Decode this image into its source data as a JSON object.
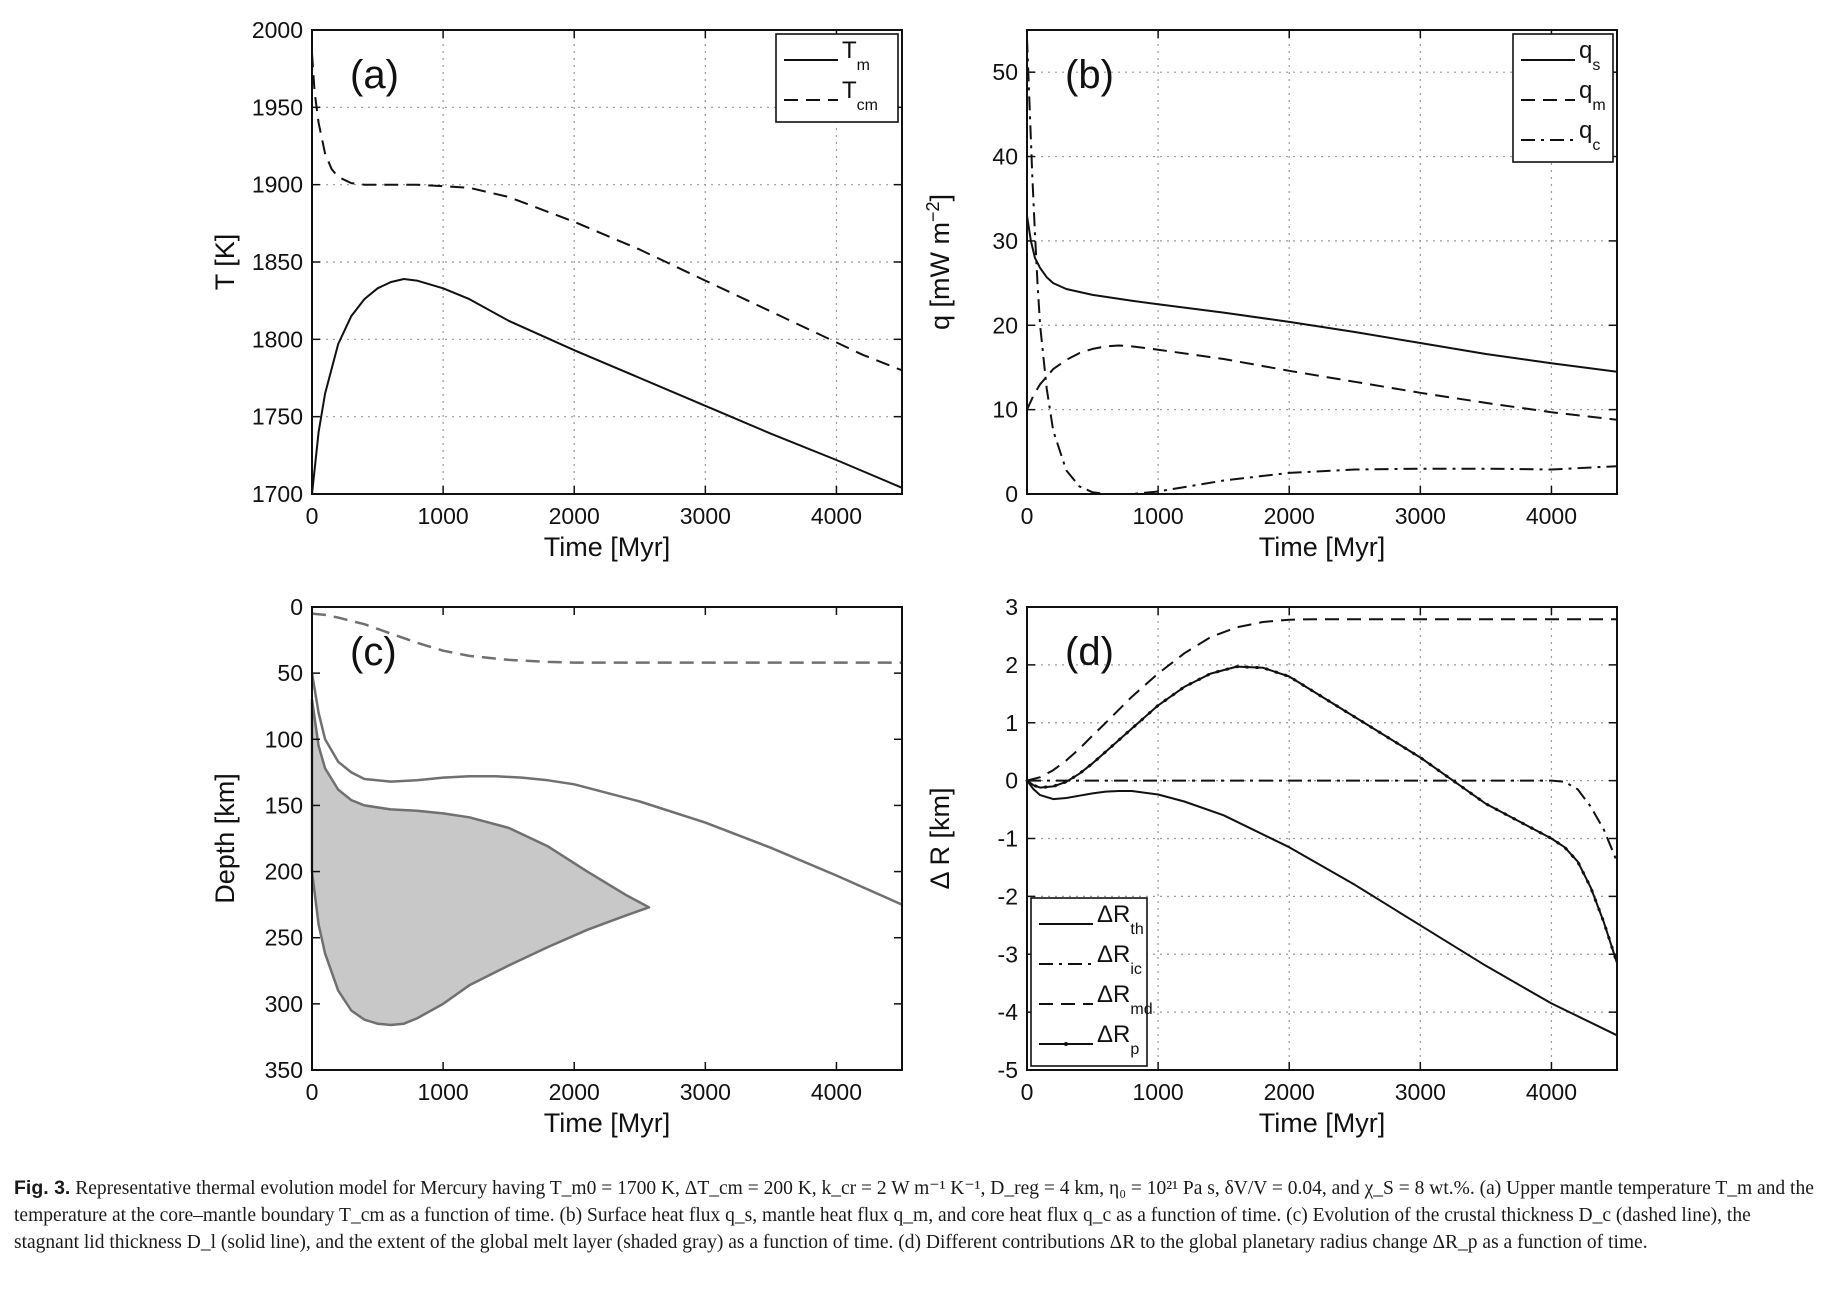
{
  "figure": {
    "caption_label": "Fig. 3.",
    "caption_text": "Representative thermal evolution model for Mercury having T_m0 = 1700 K, ΔT_cm = 200 K, k_cr = 2 W m⁻¹ K⁻¹, D_reg = 4 km, η₀ = 10²¹ Pa s, δV/V = 0.04, and χ_S = 8 wt.%. (a) Upper mantle temperature T_m and the temperature at the core–mantle boundary T_cm as a function of time. (b) Surface heat flux q_s, mantle heat flux q_m, and core heat flux q_c as a function of time. (c) Evolution of the crustal thickness D_c (dashed line), the stagnant lid thickness D_l (solid line), and the extent of the global melt layer (shaded gray) as a function of time. (d) Different contributions ΔR to the global planetary radius change ΔR_p as a function of time."
  },
  "chart_data": [
    {
      "id": "a",
      "panel_label": "(a)",
      "type": "line",
      "xlabel": "Time [Myr]",
      "ylabel": "T [K]",
      "xlim": [
        0,
        4500
      ],
      "ylim": [
        1700,
        2000
      ],
      "x_ticks": [
        0,
        1000,
        2000,
        3000,
        4000
      ],
      "y_ticks": [
        1700,
        1750,
        1800,
        1850,
        1900,
        1950,
        2000
      ],
      "grid": true,
      "legend_position": "top-right",
      "series": [
        {
          "name": "T_m",
          "label_main": "T",
          "label_sub": "m",
          "style": "solid",
          "color": "#111111",
          "x": [
            0,
            50,
            100,
            200,
            300,
            400,
            500,
            600,
            700,
            800,
            1000,
            1200,
            1500,
            2000,
            2500,
            3000,
            3500,
            4000,
            4500
          ],
          "y": [
            1700,
            1740,
            1765,
            1797,
            1815,
            1826,
            1833,
            1837,
            1839,
            1838,
            1833,
            1826,
            1812,
            1793,
            1775,
            1757,
            1739,
            1722,
            1704
          ]
        },
        {
          "name": "T_cm",
          "label_main": "T",
          "label_sub": "cm",
          "style": "dashed",
          "color": "#111111",
          "x": [
            0,
            20,
            50,
            100,
            150,
            200,
            300,
            400,
            600,
            800,
            1000,
            1200,
            1500,
            2000,
            2500,
            3000,
            3500,
            4000,
            4200,
            4500
          ],
          "y": [
            1985,
            1960,
            1940,
            1920,
            1910,
            1905,
            1901,
            1900,
            1900,
            1900,
            1899,
            1898,
            1892,
            1876,
            1858,
            1838,
            1818,
            1798,
            1790,
            1780
          ]
        }
      ]
    },
    {
      "id": "b",
      "panel_label": "(b)",
      "type": "line",
      "xlabel": "Time [Myr]",
      "ylabel": "q [mW m⁻²]",
      "ylabel_main": "q [mW m",
      "ylabel_sup": "−2",
      "ylabel_end": "]",
      "xlim": [
        0,
        4500
      ],
      "ylim": [
        0,
        55
      ],
      "x_ticks": [
        0,
        1000,
        2000,
        3000,
        4000
      ],
      "y_ticks": [
        0,
        10,
        20,
        30,
        40,
        50
      ],
      "grid": true,
      "legend_position": "top-right",
      "series": [
        {
          "name": "q_s",
          "label_main": "q",
          "label_sub": "s",
          "style": "solid",
          "color": "#111111",
          "x": [
            0,
            30,
            60,
            100,
            150,
            200,
            300,
            500,
            800,
            1000,
            1500,
            2000,
            2500,
            3000,
            3500,
            4000,
            4500
          ],
          "y": [
            33,
            30,
            28,
            26.8,
            25.7,
            25,
            24.3,
            23.6,
            22.9,
            22.5,
            21.5,
            20.4,
            19.2,
            17.9,
            16.6,
            15.5,
            14.5
          ]
        },
        {
          "name": "q_m",
          "label_main": "q",
          "label_sub": "m",
          "style": "dashed",
          "color": "#111111",
          "x": [
            0,
            50,
            100,
            200,
            300,
            400,
            500,
            600,
            700,
            800,
            1000,
            1500,
            2000,
            2500,
            3000,
            3500,
            4000,
            4500
          ],
          "y": [
            10,
            11.7,
            13,
            14.8,
            15.9,
            16.7,
            17.2,
            17.5,
            17.6,
            17.5,
            17.1,
            16,
            14.6,
            13.3,
            12,
            10.8,
            9.7,
            8.8
          ]
        },
        {
          "name": "q_c",
          "label_main": "q",
          "label_sub": "c",
          "style": "dashdot",
          "color": "#111111",
          "x": [
            0,
            20,
            40,
            60,
            80,
            100,
            150,
            200,
            300,
            400,
            500,
            600,
            800,
            1000,
            1500,
            2000,
            2500,
            3000,
            3500,
            4000,
            4500
          ],
          "y": [
            54,
            46,
            38,
            31,
            25,
            20,
            12.5,
            7.5,
            2.8,
            0.9,
            0.2,
            0,
            0,
            0.3,
            1.6,
            2.5,
            2.9,
            3,
            3,
            2.9,
            3.3
          ]
        }
      ]
    },
    {
      "id": "c",
      "panel_label": "(c)",
      "type": "area",
      "xlabel": "Time [Myr]",
      "ylabel": "Depth [km]",
      "xlim": [
        0,
        4500
      ],
      "ylim": [
        0,
        350
      ],
      "y_inverted": true,
      "x_ticks": [
        0,
        1000,
        2000,
        3000,
        4000
      ],
      "y_ticks": [
        0,
        50,
        100,
        150,
        200,
        250,
        300,
        350
      ],
      "grid": false,
      "series": [
        {
          "name": "",
          "style": "dashed",
          "color": "#707070",
          "x": [
            0,
            100,
            200,
            400,
            600,
            800,
            1000,
            1200,
            1500,
            1800,
            2000,
            2500,
            3000,
            4500
          ],
          "y": [
            5,
            6,
            8,
            13,
            20,
            27,
            33,
            37,
            40,
            41.5,
            42,
            42,
            42,
            42
          ]
        },
        {
          "name": "",
          "style": "solid",
          "color": "#707070",
          "x": [
            0,
            50,
            100,
            200,
            300,
            400,
            600,
            800,
            1000,
            1200,
            1400,
            1600,
            1800,
            2000,
            2500,
            3000,
            3500,
            4000,
            4500
          ],
          "y": [
            50,
            80,
            100,
            117,
            125,
            130,
            132,
            131,
            129,
            128,
            128,
            129,
            131,
            134,
            147,
            163,
            182,
            203,
            225
          ]
        },
        {
          "name": "",
          "style": "area",
          "color": "#707070",
          "fill": "#c8c8c8",
          "x_top": [
            0,
            50,
            100,
            200,
            300,
            400,
            600,
            800,
            1000,
            1200,
            1500,
            1800,
            2100,
            2400,
            2570
          ],
          "y_top": [
            70,
            105,
            122,
            138,
            146,
            150,
            153,
            154,
            156,
            159,
            167,
            181,
            200,
            218,
            227
          ],
          "x_bottom": [
            0,
            50,
            100,
            200,
            300,
            400,
            500,
            600,
            700,
            800,
            1000,
            1200,
            1500,
            1800,
            2100,
            2400,
            2570
          ],
          "y_bottom": [
            200,
            240,
            262,
            290,
            305,
            312,
            315,
            316,
            315,
            311,
            300,
            286,
            271,
            257,
            244,
            233,
            227
          ]
        }
      ]
    },
    {
      "id": "d",
      "panel_label": "(d)",
      "type": "line",
      "xlabel": "Time [Myr]",
      "ylabel": "Δ R [km]",
      "xlim": [
        0,
        4500
      ],
      "ylim": [
        -5,
        3
      ],
      "x_ticks": [
        0,
        1000,
        2000,
        3000,
        4000
      ],
      "y_ticks": [
        -5,
        -4,
        -3,
        -2,
        -1,
        0,
        1,
        2,
        3
      ],
      "grid": true,
      "legend_position": "bottom-left",
      "series": [
        {
          "name": "ΔR_th",
          "label_main": "ΔR",
          "label_sub": "th",
          "style": "solid",
          "color": "#111111",
          "x": [
            0,
            50,
            100,
            200,
            300,
            400,
            500,
            600,
            700,
            800,
            1000,
            1200,
            1500,
            2000,
            2500,
            3000,
            3500,
            4000,
            4500
          ],
          "y": [
            0,
            -0.15,
            -0.25,
            -0.32,
            -0.3,
            -0.26,
            -0.22,
            -0.19,
            -0.18,
            -0.18,
            -0.24,
            -0.36,
            -0.6,
            -1.15,
            -1.8,
            -2.5,
            -3.2,
            -3.85,
            -4.4
          ]
        },
        {
          "name": "ΔR_ic",
          "label_main": "ΔR",
          "label_sub": "ic",
          "style": "dashdot",
          "color": "#111111",
          "x": [
            0,
            1000,
            2000,
            3000,
            4000,
            4100,
            4200,
            4300,
            4400,
            4500
          ],
          "y": [
            0,
            0,
            0,
            0,
            0,
            -0.02,
            -0.15,
            -0.45,
            -0.85,
            -1.4
          ]
        },
        {
          "name": "ΔR_md",
          "label_main": "ΔR",
          "label_sub": "md",
          "style": "dashed",
          "color": "#111111",
          "x": [
            0,
            100,
            200,
            300,
            400,
            500,
            600,
            800,
            1000,
            1200,
            1400,
            1600,
            1800,
            2000,
            2200,
            4500
          ],
          "y": [
            0,
            0.06,
            0.18,
            0.35,
            0.55,
            0.78,
            1.0,
            1.45,
            1.85,
            2.2,
            2.48,
            2.65,
            2.74,
            2.78,
            2.79,
            2.79
          ]
        },
        {
          "name": "ΔR_p",
          "label_main": "ΔR",
          "label_sub": "p",
          "style": "dotted-solid",
          "color": "#111111",
          "x": [
            0,
            50,
            100,
            200,
            300,
            400,
            500,
            600,
            800,
            1000,
            1200,
            1400,
            1600,
            1800,
            2000,
            2500,
            3000,
            3500,
            4000,
            4100,
            4200,
            4300,
            4400,
            4500
          ],
          "y": [
            0,
            -0.08,
            -0.12,
            -0.1,
            -0.02,
            0.12,
            0.3,
            0.5,
            0.9,
            1.3,
            1.62,
            1.85,
            1.97,
            1.95,
            1.8,
            1.1,
            0.4,
            -0.4,
            -1.0,
            -1.15,
            -1.4,
            -1.85,
            -2.45,
            -3.15
          ]
        }
      ]
    }
  ]
}
